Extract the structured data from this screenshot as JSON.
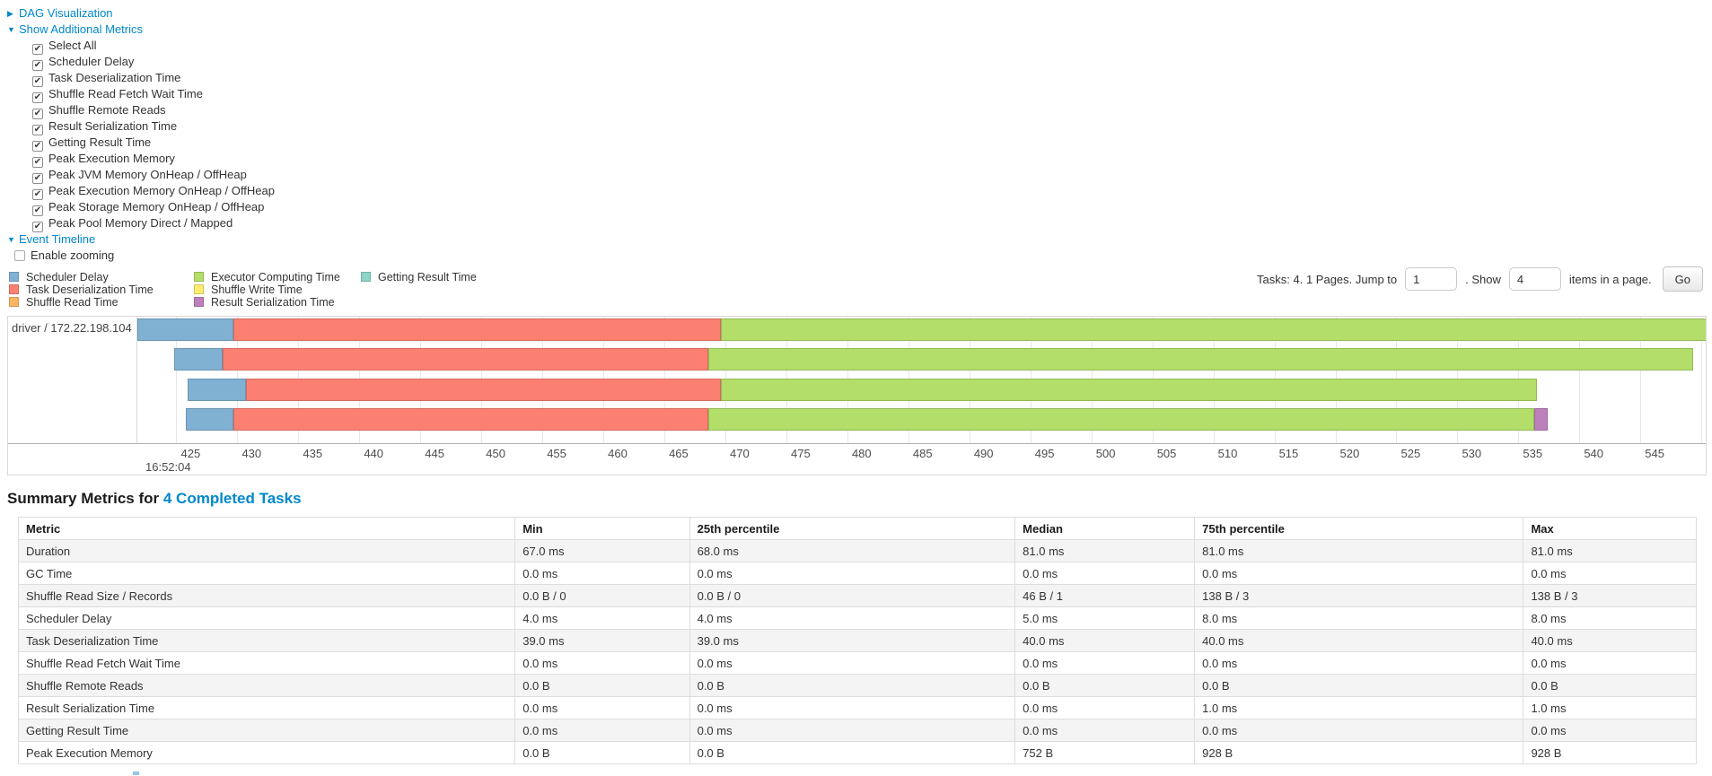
{
  "toggles": {
    "dag": {
      "arrow": "▶",
      "label": "DAG Visualization"
    },
    "metrics": {
      "arrow": "▼",
      "label": "Show Additional Metrics"
    },
    "event_timeline": {
      "arrow": "▼",
      "label": "Event Timeline"
    }
  },
  "metric_checkboxes": [
    "Select All",
    "Scheduler Delay",
    "Task Deserialization Time",
    "Shuffle Read Fetch Wait Time",
    "Shuffle Remote Reads",
    "Result Serialization Time",
    "Getting Result Time",
    "Peak Execution Memory",
    "Peak JVM Memory OnHeap / OffHeap",
    "Peak Execution Memory OnHeap / OffHeap",
    "Peak Storage Memory OnHeap / OffHeap",
    "Peak Pool Memory Direct / Mapped"
  ],
  "enable_zooming_label": "Enable zooming",
  "pagination": {
    "prefix": "Tasks: 4. 1 Pages. Jump to",
    "jump_value": "1",
    "middle": ". Show",
    "show_value": "4",
    "suffix": "items in a page.",
    "go_label": "Go"
  },
  "chart_data": {
    "type": "timeline",
    "group_label": "driver / 172.22.198.104",
    "time_label": "16:52:04",
    "axis_domain": [
      421.8,
      550.35
    ],
    "ticks": [
      425,
      430,
      435,
      440,
      445,
      450,
      455,
      460,
      465,
      470,
      475,
      480,
      485,
      490,
      495,
      500,
      505,
      510,
      515,
      520,
      525,
      530,
      535,
      540,
      545,
      550
    ],
    "palette": {
      "scheduler-delay": {
        "fill": "#80B1D3",
        "stroke": "#6B94B0"
      },
      "task-deserialization": {
        "fill": "#FB8072",
        "stroke": "#D26B5F"
      },
      "shuffle-read": {
        "fill": "#FDB462",
        "stroke": "#D39652"
      },
      "executor-computing": {
        "fill": "#B3DE69",
        "stroke": "#95B957"
      },
      "shuffle-write": {
        "fill": "#FFED6F",
        "stroke": "#D5C55C"
      },
      "result-serialization": {
        "fill": "#BC80BD",
        "stroke": "#9D6B9E"
      },
      "getting-result": {
        "fill": "#8DD3C7",
        "stroke": "#75B0A6"
      }
    },
    "legend_columns": [
      [
        {
          "key": "scheduler-delay",
          "label": "Scheduler Delay"
        },
        {
          "key": "task-deserialization",
          "label": "Task Deserialization Time"
        },
        {
          "key": "shuffle-read",
          "label": "Shuffle Read Time"
        }
      ],
      [
        {
          "key": "executor-computing",
          "label": "Executor Computing Time"
        },
        {
          "key": "shuffle-write",
          "label": "Shuffle Write Time"
        },
        {
          "key": "result-serialization",
          "label": "Result Serialization Time"
        }
      ],
      [
        {
          "key": "getting-result",
          "label": "Getting Result Time"
        }
      ]
    ],
    "tasks": [
      {
        "segments": [
          {
            "key": "scheduler-delay",
            "start": 421.8,
            "end": 429.7
          },
          {
            "key": "task-deserialization",
            "start": 429.7,
            "end": 469.6
          },
          {
            "key": "executor-computing",
            "start": 469.6,
            "end": 550.5
          }
        ]
      },
      {
        "segments": [
          {
            "key": "scheduler-delay",
            "start": 424.8,
            "end": 428.8
          },
          {
            "key": "task-deserialization",
            "start": 428.8,
            "end": 468.6
          },
          {
            "key": "executor-computing",
            "start": 468.6,
            "end": 549.3
          }
        ]
      },
      {
        "segments": [
          {
            "key": "scheduler-delay",
            "start": 425.9,
            "end": 430.7
          },
          {
            "key": "task-deserialization",
            "start": 430.7,
            "end": 469.6
          },
          {
            "key": "executor-computing",
            "start": 469.6,
            "end": 536.5
          }
        ]
      },
      {
        "segments": [
          {
            "key": "scheduler-delay",
            "start": 425.8,
            "end": 429.7
          },
          {
            "key": "task-deserialization",
            "start": 429.7,
            "end": 468.6
          },
          {
            "key": "executor-computing",
            "start": 468.6,
            "end": 536.3
          },
          {
            "key": "result-serialization",
            "start": 536.3,
            "end": 537.4
          }
        ]
      }
    ]
  },
  "summary": {
    "title_prefix": "Summary Metrics for",
    "title_link": "4 Completed Tasks",
    "columns": [
      "Metric",
      "Min",
      "25th percentile",
      "Median",
      "75th percentile",
      "Max"
    ],
    "rows": [
      [
        "Duration",
        "67.0 ms",
        "68.0 ms",
        "81.0 ms",
        "81.0 ms",
        "81.0 ms"
      ],
      [
        "GC Time",
        "0.0 ms",
        "0.0 ms",
        "0.0 ms",
        "0.0 ms",
        "0.0 ms"
      ],
      [
        "Shuffle Read Size / Records",
        "0.0 B / 0",
        "0.0 B / 0",
        "46 B / 1",
        "138 B / 3",
        "138 B / 3"
      ],
      [
        "Scheduler Delay",
        "4.0 ms",
        "4.0 ms",
        "5.0 ms",
        "8.0 ms",
        "8.0 ms"
      ],
      [
        "Task Deserialization Time",
        "39.0 ms",
        "39.0 ms",
        "40.0 ms",
        "40.0 ms",
        "40.0 ms"
      ],
      [
        "Shuffle Read Fetch Wait Time",
        "0.0 ms",
        "0.0 ms",
        "0.0 ms",
        "0.0 ms",
        "0.0 ms"
      ],
      [
        "Shuffle Remote Reads",
        "0.0 B",
        "0.0 B",
        "0.0 B",
        "0.0 B",
        "0.0 B"
      ],
      [
        "Result Serialization Time",
        "0.0 ms",
        "0.0 ms",
        "0.0 ms",
        "1.0 ms",
        "1.0 ms"
      ],
      [
        "Getting Result Time",
        "0.0 ms",
        "0.0 ms",
        "0.0 ms",
        "0.0 ms",
        "0.0 ms"
      ],
      [
        "Peak Execution Memory",
        "0.0 B",
        "0.0 B",
        "752 B",
        "928 B",
        "928 B"
      ]
    ]
  }
}
